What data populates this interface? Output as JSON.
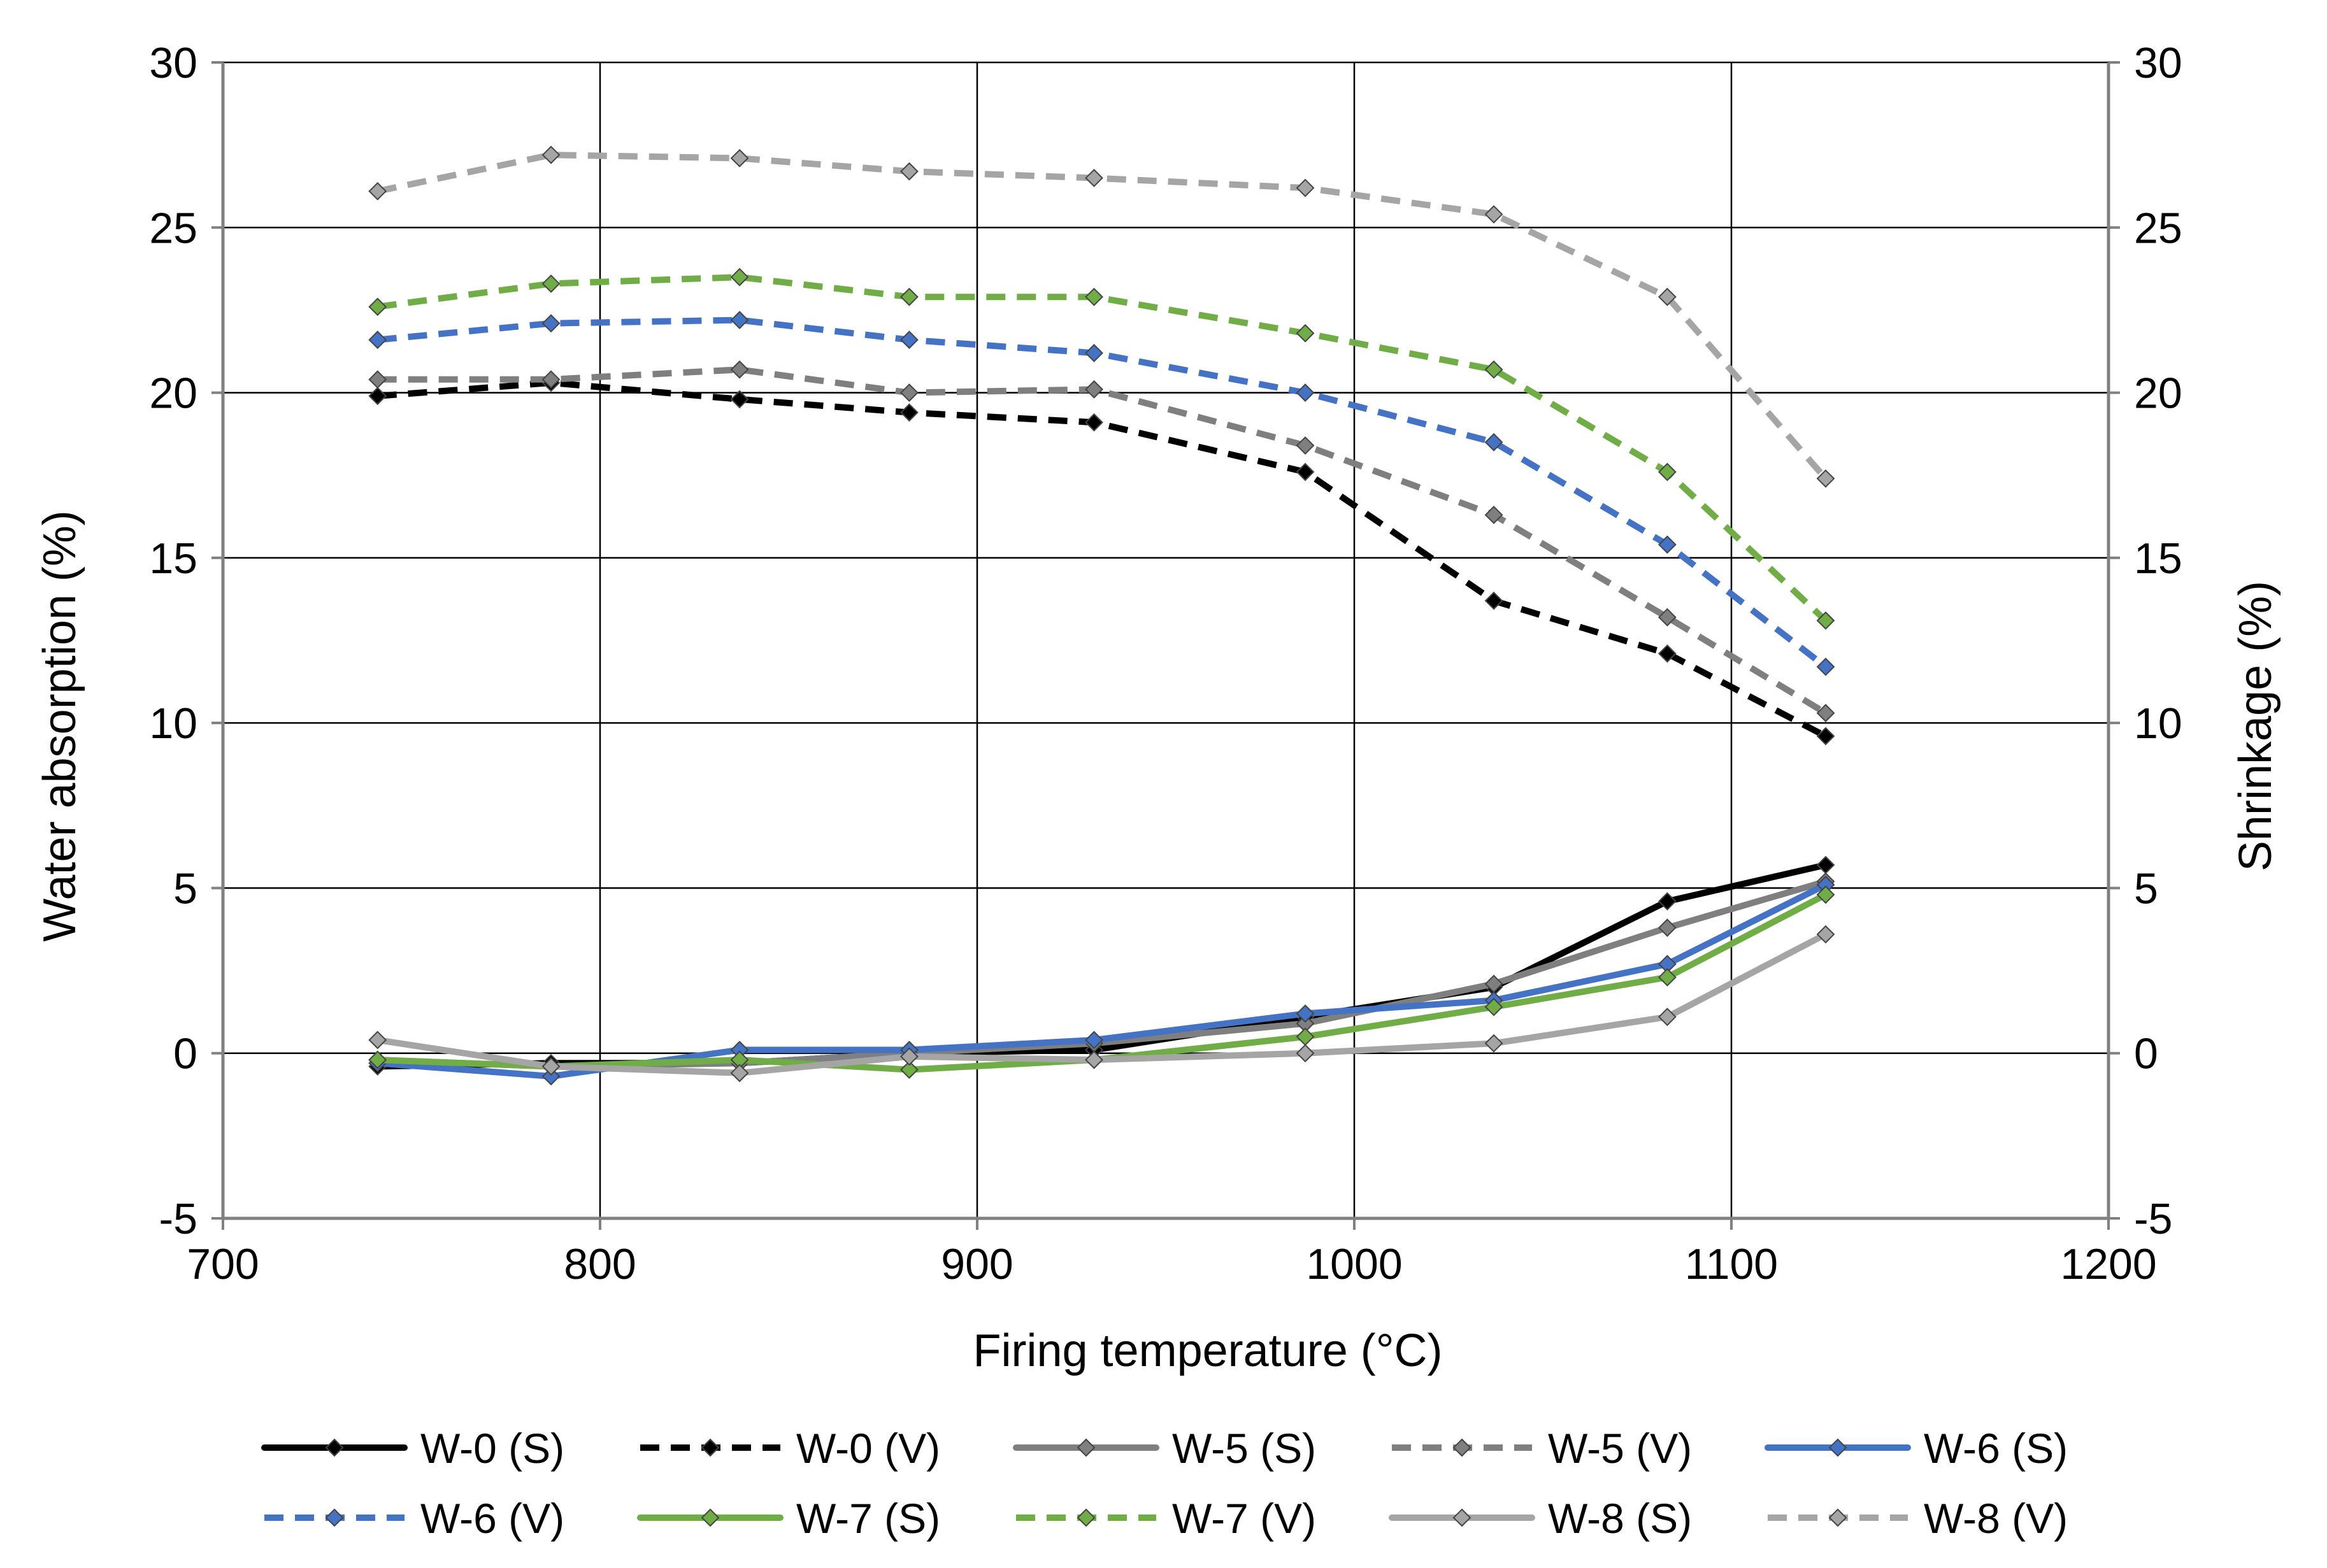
{
  "chart_data": {
    "type": "line",
    "title": "",
    "xlabel": "Firing temperature (°C)",
    "ylabel": "Water absorption  (%)",
    "y2label": "Shrinkage (%)",
    "xlim": [
      700,
      1200
    ],
    "ylim": [
      -5,
      30
    ],
    "y2lim": [
      -5,
      30
    ],
    "x_ticks": [
      700,
      800,
      900,
      1000,
      1100,
      1200
    ],
    "y_ticks": [
      -5,
      0,
      5,
      10,
      15,
      20,
      25,
      30
    ],
    "y2_ticks": [
      -5,
      0,
      5,
      10,
      15,
      20,
      25,
      30
    ],
    "grid": true,
    "legend_position": "bottom",
    "x": [
      741,
      787,
      837,
      882,
      931,
      987,
      1037,
      1083,
      1125
    ],
    "series": [
      {
        "name": "W-0 (S)",
        "color": "#000000",
        "dash": "solid",
        "axis": "right",
        "values": [
          -0.4,
          -0.3,
          -0.3,
          0.0,
          0.1,
          1.1,
          2.0,
          4.6,
          5.7
        ]
      },
      {
        "name": "W-0 (V)",
        "color": "#000000",
        "dash": "dashed",
        "axis": "left",
        "values": [
          19.9,
          20.3,
          19.8,
          19.4,
          19.1,
          17.6,
          13.7,
          12.1,
          9.6
        ]
      },
      {
        "name": "W-5 (S)",
        "color": "#7f7f7f",
        "dash": "solid",
        "axis": "right",
        "values": [
          -0.2,
          -0.4,
          -0.3,
          0.0,
          0.3,
          0.9,
          2.1,
          3.8,
          5.2
        ]
      },
      {
        "name": "W-5 (V)",
        "color": "#7f7f7f",
        "dash": "dashed",
        "axis": "left",
        "values": [
          20.4,
          20.4,
          20.7,
          20.0,
          20.1,
          18.4,
          16.3,
          13.2,
          10.3
        ]
      },
      {
        "name": "W-6 (S)",
        "color": "#4472c4",
        "dash": "solid",
        "axis": "right",
        "values": [
          -0.3,
          -0.7,
          0.1,
          0.1,
          0.4,
          1.2,
          1.6,
          2.7,
          5.1
        ]
      },
      {
        "name": "W-6 (V)",
        "color": "#4472c4",
        "dash": "dashed",
        "axis": "left",
        "values": [
          21.6,
          22.1,
          22.2,
          21.6,
          21.2,
          20.0,
          18.5,
          15.4,
          11.7
        ]
      },
      {
        "name": "W-7 (S)",
        "color": "#70ad47",
        "dash": "solid",
        "axis": "right",
        "values": [
          -0.2,
          -0.4,
          -0.2,
          -0.5,
          -0.2,
          0.5,
          1.4,
          2.3,
          4.8
        ]
      },
      {
        "name": "W-7 (V)",
        "color": "#70ad47",
        "dash": "dashed",
        "axis": "left",
        "values": [
          22.6,
          23.3,
          23.5,
          22.9,
          22.9,
          21.8,
          20.7,
          17.6,
          13.1
        ]
      },
      {
        "name": "W-8 (S)",
        "color": "#a5a5a5",
        "dash": "solid",
        "axis": "right",
        "values": [
          0.4,
          -0.4,
          -0.6,
          -0.1,
          -0.2,
          0.0,
          0.3,
          1.1,
          3.6
        ]
      },
      {
        "name": "W-8 (V)",
        "color": "#a5a5a5",
        "dash": "dashed",
        "axis": "left",
        "values": [
          26.1,
          27.2,
          27.1,
          26.7,
          26.5,
          26.2,
          25.4,
          22.9,
          17.4
        ]
      }
    ]
  }
}
